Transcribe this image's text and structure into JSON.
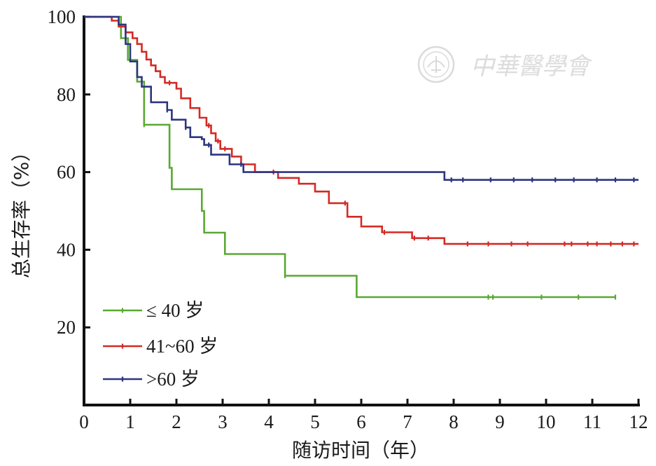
{
  "watermark": {
    "text": "中華醫學會"
  },
  "chart_data": {
    "type": "line",
    "subtype": "kaplan-meier step",
    "title": "",
    "xlabel": "随访时间（年）",
    "ylabel": "总生存率（%）",
    "xlim": [
      0,
      12
    ],
    "ylim": [
      0,
      100
    ],
    "xticks": [
      "0",
      "1",
      "2",
      "3",
      "4",
      "5",
      "6",
      "7",
      "8",
      "9",
      "10",
      "11",
      "12"
    ],
    "yticks": [
      "20",
      "40",
      "60",
      "80",
      "100"
    ],
    "grid": false,
    "legend_position": "bottom-left",
    "series": [
      {
        "name": "≤ 40 岁",
        "color": "#5aa833",
        "x": [
          0,
          0.8,
          0.8,
          0.95,
          0.95,
          1.15,
          1.15,
          1.3,
          1.3,
          1.85,
          1.85,
          1.9,
          1.9,
          2.55,
          2.55,
          2.6,
          2.6,
          3.05,
          3.05,
          4.35,
          4.35,
          5.9,
          5.9,
          11.5
        ],
        "y": [
          100,
          100,
          94.5,
          94.5,
          88.9,
          88.9,
          83.3,
          83.3,
          72.2,
          72.2,
          61.1,
          61.1,
          55.6,
          55.6,
          50,
          50,
          44.4,
          44.4,
          38.9,
          38.9,
          33.3,
          33.3,
          27.8,
          27.8
        ],
        "censor_x": [
          1.3,
          4.35,
          8.75,
          8.85,
          9.9,
          10.7,
          11.5
        ],
        "censor_y": [
          72.2,
          33.3,
          27.8,
          27.8,
          27.8,
          27.8,
          27.8
        ]
      },
      {
        "name": "41~60 岁",
        "color": "#d42a24",
        "x": [
          0,
          0.6,
          0.6,
          0.75,
          0.75,
          0.9,
          0.9,
          1.05,
          1.05,
          1.15,
          1.15,
          1.25,
          1.25,
          1.35,
          1.35,
          1.45,
          1.45,
          1.55,
          1.55,
          1.65,
          1.65,
          1.75,
          1.75,
          2.0,
          2.0,
          2.1,
          2.1,
          2.3,
          2.3,
          2.5,
          2.5,
          2.65,
          2.65,
          2.75,
          2.75,
          2.85,
          2.85,
          2.95,
          2.95,
          3.2,
          3.2,
          3.4,
          3.4,
          3.7,
          3.7,
          4.2,
          4.2,
          4.65,
          4.65,
          5.0,
          5.0,
          5.3,
          5.3,
          5.7,
          5.7,
          6.0,
          6.0,
          6.45,
          6.45,
          7.1,
          7.1,
          7.8,
          7.8,
          12.0
        ],
        "y": [
          100,
          100,
          99,
          99,
          97.5,
          97.5,
          96,
          96,
          94.5,
          94.5,
          93,
          93,
          91,
          91,
          89,
          89,
          87.5,
          87.5,
          86,
          86,
          84.5,
          84.5,
          83,
          83,
          81.5,
          81.5,
          79,
          79,
          76.5,
          76.5,
          74,
          74,
          72,
          72,
          70,
          70,
          68,
          68,
          66,
          66,
          64,
          64,
          62,
          62,
          60,
          60,
          58.5,
          58.5,
          57,
          57,
          55,
          55,
          52,
          52,
          48.5,
          48.5,
          46,
          46,
          44.5,
          44.5,
          43,
          43,
          41.5,
          41.5
        ],
        "censor_x": [
          1.85,
          2.7,
          2.9,
          3.05,
          4.1,
          5.65,
          6.5,
          7.15,
          7.45,
          8.3,
          8.75,
          9.25,
          9.6,
          10.4,
          10.55,
          10.9,
          11.1,
          11.4,
          11.65,
          11.9
        ],
        "censor_y": [
          83,
          72,
          68,
          66,
          60,
          52,
          44.5,
          43,
          43,
          41.5,
          41.5,
          41.5,
          41.5,
          41.5,
          41.5,
          41.5,
          41.5,
          41.5,
          41.5,
          41.5
        ]
      },
      {
        "name": ">60 岁",
        "color": "#2d3580",
        "x": [
          0,
          0.75,
          0.75,
          0.9,
          0.9,
          1.0,
          1.0,
          1.15,
          1.15,
          1.25,
          1.25,
          1.45,
          1.45,
          1.8,
          1.8,
          1.9,
          1.9,
          2.2,
          2.2,
          2.3,
          2.3,
          2.55,
          2.55,
          2.6,
          2.6,
          2.75,
          2.75,
          3.15,
          3.15,
          3.45,
          3.45,
          7.8,
          7.8,
          12.0
        ],
        "y": [
          100,
          100,
          98,
          98,
          93,
          93,
          88.5,
          88.5,
          84.5,
          84.5,
          82,
          82,
          78,
          78,
          76,
          76,
          73.5,
          73.5,
          71.5,
          71.5,
          69,
          69,
          68.5,
          68.5,
          67,
          67,
          64.5,
          64.5,
          62,
          62,
          60,
          60,
          58,
          58
        ],
        "censor_x": [
          1.8,
          2.2,
          2.7,
          3.4,
          7.95,
          8.2,
          8.8,
          9.3,
          9.7,
          10.2,
          10.6,
          11.1,
          11.5,
          11.9
        ],
        "censor_y": [
          76,
          71.5,
          67,
          62,
          58,
          58,
          58,
          58,
          58,
          58,
          58,
          58,
          58,
          58
        ]
      }
    ]
  }
}
